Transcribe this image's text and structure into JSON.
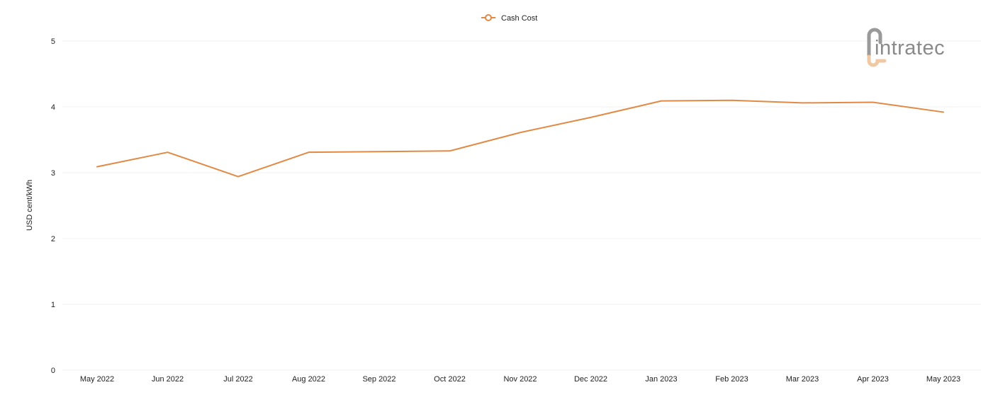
{
  "logo": {
    "text": "intratec"
  },
  "colors": {
    "series": "#e08a45",
    "grid": "#f2f2f2",
    "logo_text": "#8a8a8a",
    "logo_mark_top": "#9a9a9a",
    "logo_mark_bottom": "#f0c9a4"
  },
  "chart_data": {
    "type": "line",
    "title": "",
    "xlabel": "",
    "ylabel": "USD cent/kWh",
    "ylim": [
      0,
      5
    ],
    "yticks": [
      0,
      1,
      2,
      3,
      4,
      5
    ],
    "grid": true,
    "legend_position": "top-center",
    "categories": [
      "May 2022",
      "Jun 2022",
      "Jul 2022",
      "Aug 2022",
      "Sep 2022",
      "Oct 2022",
      "Nov 2022",
      "Dec 2022",
      "Jan 2023",
      "Feb 2023",
      "Mar 2023",
      "Apr 2023",
      "May 2023"
    ],
    "series": [
      {
        "name": "Cash Cost",
        "color": "#e08a45",
        "values": [
          3.09,
          3.31,
          2.94,
          3.31,
          3.32,
          3.33,
          3.61,
          3.84,
          4.09,
          4.1,
          4.06,
          4.07,
          3.92
        ]
      }
    ]
  }
}
